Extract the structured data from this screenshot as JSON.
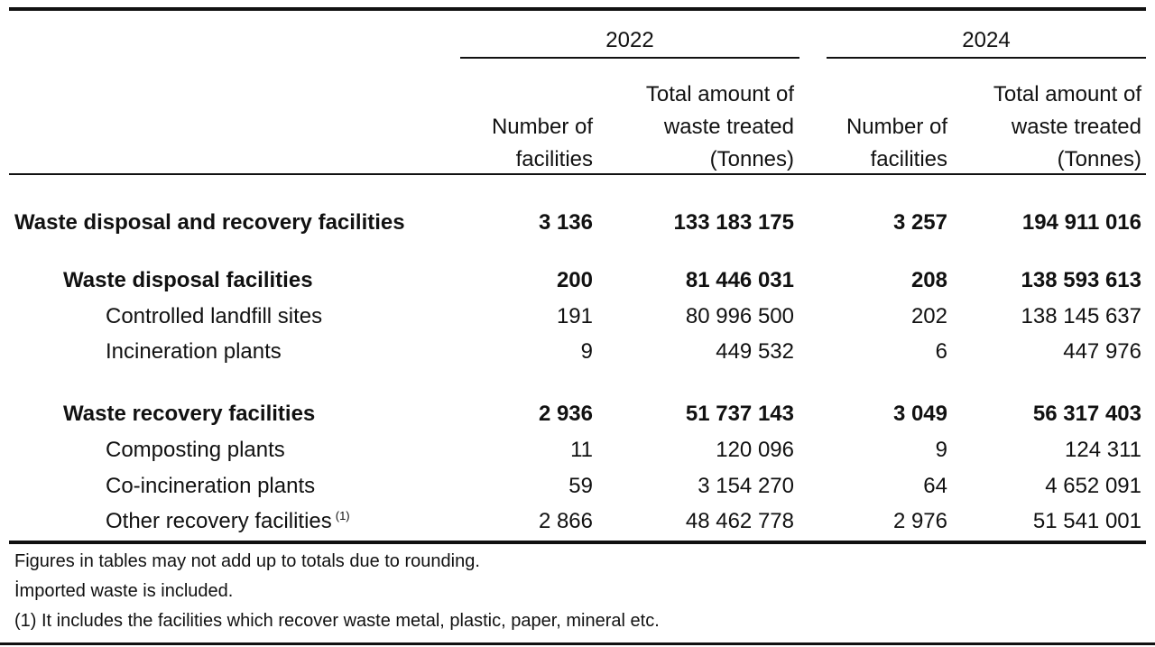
{
  "header": {
    "years": [
      "2022",
      "2024"
    ],
    "col_number": [
      "Number of",
      "facilities"
    ],
    "col_total": [
      "Total amount of",
      "waste treated",
      "(Tonnes)"
    ]
  },
  "rows": [
    {
      "label": "Waste disposal and recovery facilities",
      "level": 0,
      "bold": true,
      "n2022": "3 136",
      "t2022": "133 183 175",
      "n2024": "3 257",
      "t2024": "194 911 016"
    },
    {
      "label": "Waste disposal facilities",
      "level": 1,
      "bold": true,
      "n2022": "200",
      "t2022": "81 446 031",
      "n2024": "208",
      "t2024": "138 593 613"
    },
    {
      "label": "Controlled landfill sites",
      "level": 2,
      "bold": false,
      "n2022": "191",
      "t2022": "80 996 500",
      "n2024": "202",
      "t2024": "138 145 637"
    },
    {
      "label": "Incineration plants",
      "level": 2,
      "bold": false,
      "n2022": "9",
      "t2022": "449 532",
      "n2024": "6",
      "t2024": "447 976"
    },
    {
      "label": "Waste recovery facilities",
      "level": 1,
      "bold": true,
      "n2022": "2 936",
      "t2022": "51 737 143",
      "n2024": "3 049",
      "t2024": "56 317 403"
    },
    {
      "label": "Composting plants",
      "level": 2,
      "bold": false,
      "n2022": "11",
      "t2022": "120 096",
      "n2024": "9",
      "t2024": "124 311"
    },
    {
      "label": "Co-incineration plants",
      "level": 2,
      "bold": false,
      "n2022": "59",
      "t2022": "3 154 270",
      "n2024": "64",
      "t2024": "4 652 091"
    },
    {
      "label": "Other recovery facilities",
      "sup": "(1)",
      "level": 2,
      "bold": false,
      "n2022": "2 866",
      "t2022": "48 462 778",
      "n2024": "2 976",
      "t2024": "51 541 001"
    }
  ],
  "footnotes": [
    "Figures in tables may not add up to totals due to rounding.",
    "İmported waste is included.",
    "(1) It includes the facilities which recover waste metal, plastic, paper, mineral etc."
  ]
}
